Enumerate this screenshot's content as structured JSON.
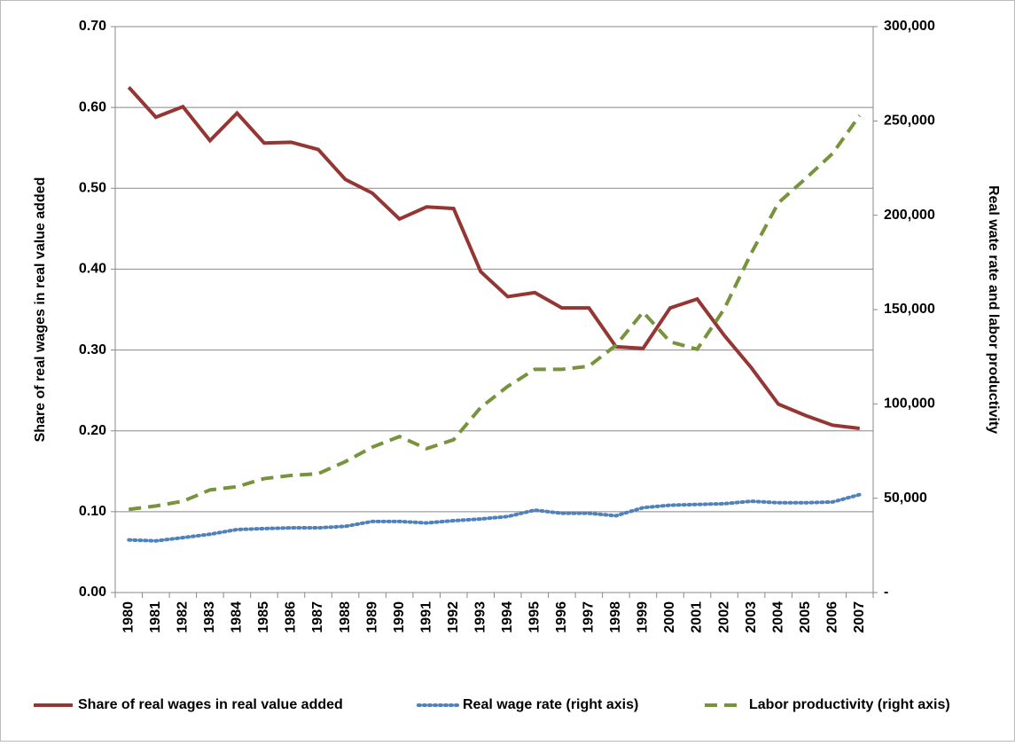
{
  "chart_data": {
    "type": "line",
    "categories": [
      "1980",
      "1981",
      "1982",
      "1983",
      "1984",
      "1985",
      "1986",
      "1987",
      "1988",
      "1989",
      "1990",
      "1991",
      "1992",
      "1993",
      "1994",
      "1995",
      "1996",
      "1997",
      "1998",
      "1999",
      "2000",
      "2001",
      "2002",
      "2003",
      "2004",
      "2005",
      "2006",
      "2007"
    ],
    "y_label": "Share of real wages in real value added",
    "y2_label": "Real wate rate and labor productivity",
    "ylim": [
      0,
      0.7
    ],
    "yticks": [
      {
        "value": 0,
        "label": "0.00"
      },
      {
        "value": 0.1,
        "label": "0.10"
      },
      {
        "value": 0.2,
        "label": "0.20"
      },
      {
        "value": 0.3,
        "label": "0.30"
      },
      {
        "value": 0.4,
        "label": "0.40"
      },
      {
        "value": 0.5,
        "label": "0.50"
      },
      {
        "value": 0.6,
        "label": "0.60"
      },
      {
        "value": 0.7,
        "label": "0.70"
      }
    ],
    "y2lim": [
      0,
      300000
    ],
    "y2ticks": [
      {
        "value": 0,
        "label": "-"
      },
      {
        "value": 50000,
        "label": "50,000"
      },
      {
        "value": 100000,
        "label": "100,000"
      },
      {
        "value": 150000,
        "label": "150,000"
      },
      {
        "value": 200000,
        "label": "200,000"
      },
      {
        "value": 250000,
        "label": "250,000"
      },
      {
        "value": 300000,
        "label": "300,000"
      }
    ],
    "grid": true,
    "legend": "bottom",
    "series": [
      {
        "name": "Share of real wages in real value added",
        "color": "#943634",
        "dash": "solid",
        "values": [
          0.625,
          0.588,
          0.601,
          0.559,
          0.593,
          0.556,
          0.557,
          0.548,
          0.511,
          0.494,
          0.462,
          0.477,
          0.475,
          0.397,
          0.366,
          0.371,
          0.352,
          0.352,
          0.304,
          0.302,
          0.352,
          0.363,
          0.318,
          0.278,
          0.233,
          0.219,
          0.207,
          0.203
        ]
      },
      {
        "name": "Real wage rate (right axis)",
        "color": "#4f81bd",
        "dash": "dotted",
        "axis": "y2",
        "values": [
          27900,
          27400,
          29100,
          30900,
          33400,
          33900,
          34300,
          34300,
          35100,
          37700,
          37700,
          36900,
          38100,
          39000,
          40300,
          43700,
          42000,
          42000,
          40700,
          45000,
          46300,
          46700,
          47100,
          48400,
          47600,
          47600,
          48000,
          51900
        ]
      },
      {
        "name": "Labor productivity (right axis)",
        "color": "#77933c",
        "dash": "dashed",
        "axis": "y2",
        "values": [
          44100,
          45900,
          48400,
          54400,
          56100,
          60400,
          62100,
          63000,
          69400,
          77100,
          82700,
          76300,
          81000,
          98100,
          109300,
          118300,
          118300,
          120000,
          131100,
          148700,
          132900,
          129000,
          150400,
          180000,
          206600,
          219400,
          232700,
          252900
        ]
      }
    ]
  }
}
